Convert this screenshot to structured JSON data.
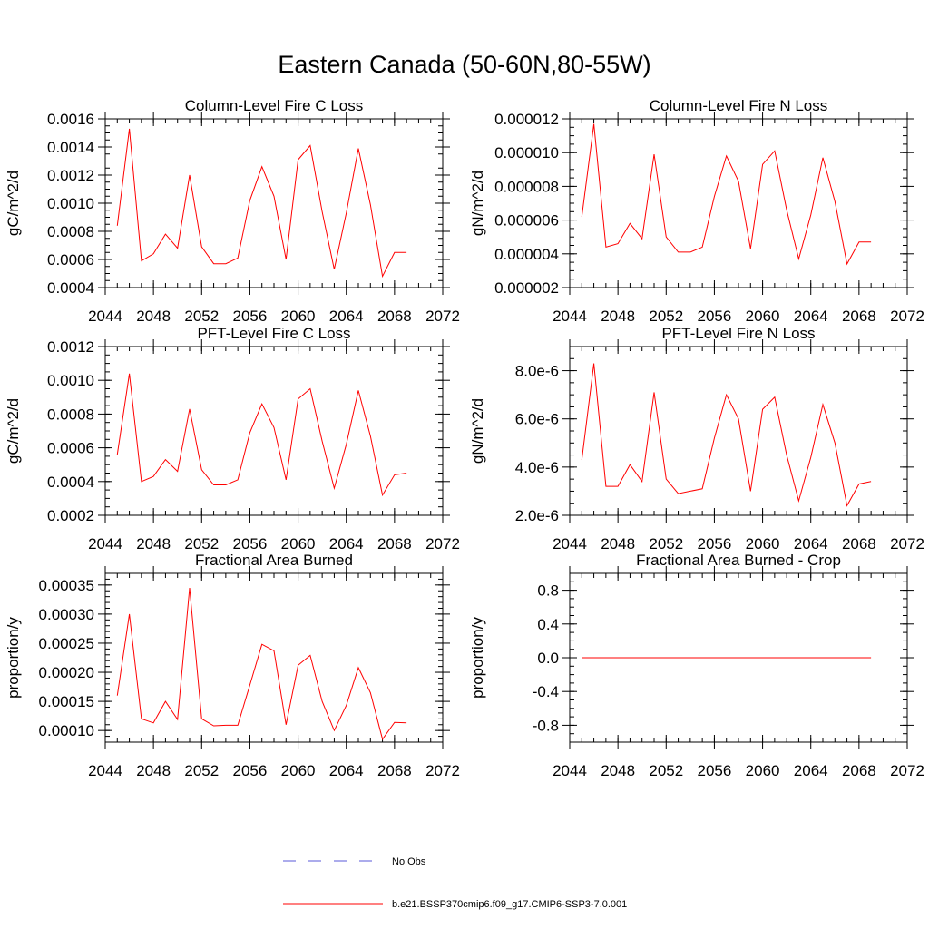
{
  "figure": {
    "title": "Eastern Canada (50-60N,80-55W)"
  },
  "chart_data": [
    {
      "type": "line",
      "title": "Column-Level Fire C Loss",
      "xlabel": "",
      "ylabel": "gC/m^2/d",
      "xlim": [
        2044,
        2072
      ],
      "ylim": [
        0.0004,
        0.0016
      ],
      "xticks": [
        2044,
        2048,
        2052,
        2056,
        2060,
        2064,
        2068,
        2072
      ],
      "xminor_step": 1,
      "yticks": [
        0.0004,
        0.0006,
        0.0008,
        0.001,
        0.0012,
        0.0014,
        0.0016
      ],
      "ytick_labels": [
        "0.0004",
        "0.0006",
        "0.0008",
        "0.0010",
        "0.0012",
        "0.0014",
        "0.0016"
      ],
      "yminor_step": 5e-05,
      "series": [
        {
          "name": "b.e21.BSSP370cmip6.f09_g17.CMIP6-SSP3-7.0.001",
          "color": "#ff0000",
          "x": [
            2045,
            2046,
            2047,
            2048,
            2049,
            2050,
            2051,
            2052,
            2053,
            2054,
            2055,
            2056,
            2057,
            2058,
            2059,
            2060,
            2061,
            2062,
            2063,
            2064,
            2065,
            2066,
            2067,
            2068,
            2069
          ],
          "y": [
            0.00084,
            0.00153,
            0.00059,
            0.00064,
            0.00078,
            0.00068,
            0.0012,
            0.00069,
            0.00057,
            0.00057,
            0.00061,
            0.00102,
            0.00126,
            0.00105,
            0.0006,
            0.00131,
            0.00141,
            0.00094,
            0.00053,
            0.00093,
            0.00139,
            0.00099,
            0.00048,
            0.00065,
            0.00065
          ]
        }
      ]
    },
    {
      "type": "line",
      "title": "Column-Level Fire N Loss",
      "xlabel": "",
      "ylabel": "gN/m^2/d",
      "xlim": [
        2044,
        2072
      ],
      "ylim": [
        2e-06,
        1.2e-05
      ],
      "xticks": [
        2044,
        2048,
        2052,
        2056,
        2060,
        2064,
        2068,
        2072
      ],
      "xminor_step": 1,
      "yticks": [
        2e-06,
        4e-06,
        6e-06,
        8e-06,
        1e-05,
        1.2e-05
      ],
      "ytick_labels": [
        "0.000002",
        "0.000004",
        "0.000006",
        "0.000008",
        "0.000010",
        "0.000012"
      ],
      "yminor_step": 5e-07,
      "series": [
        {
          "name": "b.e21.BSSP370cmip6.f09_g17.CMIP6-SSP3-7.0.001",
          "color": "#ff0000",
          "x": [
            2045,
            2046,
            2047,
            2048,
            2049,
            2050,
            2051,
            2052,
            2053,
            2054,
            2055,
            2056,
            2057,
            2058,
            2059,
            2060,
            2061,
            2062,
            2063,
            2064,
            2065,
            2066,
            2067,
            2068,
            2069
          ],
          "y": [
            6.2e-06,
            1.17e-05,
            4.4e-06,
            4.6e-06,
            5.8e-06,
            4.9e-06,
            9.9e-06,
            5e-06,
            4.1e-06,
            4.1e-06,
            4.4e-06,
            7.4e-06,
            9.8e-06,
            8.3e-06,
            4.3e-06,
            9.3e-06,
            1.01e-05,
            6.6e-06,
            3.7e-06,
            6.3e-06,
            9.7e-06,
            7.1e-06,
            3.4e-06,
            4.7e-06,
            4.7e-06
          ]
        }
      ]
    },
    {
      "type": "line",
      "title": "PFT-Level Fire C Loss",
      "xlabel": "",
      "ylabel": "gC/m^2/d",
      "xlim": [
        2044,
        2072
      ],
      "ylim": [
        0.0002,
        0.0012
      ],
      "xticks": [
        2044,
        2048,
        2052,
        2056,
        2060,
        2064,
        2068,
        2072
      ],
      "xminor_step": 1,
      "yticks": [
        0.0002,
        0.0004,
        0.0006,
        0.0008,
        0.001,
        0.0012
      ],
      "ytick_labels": [
        "0.0002",
        "0.0004",
        "0.0006",
        "0.0008",
        "0.0010",
        "0.0012"
      ],
      "yminor_step": 5e-05,
      "series": [
        {
          "name": "b.e21.BSSP370cmip6.f09_g17.CMIP6-SSP3-7.0.001",
          "color": "#ff0000",
          "x": [
            2045,
            2046,
            2047,
            2048,
            2049,
            2050,
            2051,
            2052,
            2053,
            2054,
            2055,
            2056,
            2057,
            2058,
            2059,
            2060,
            2061,
            2062,
            2063,
            2064,
            2065,
            2066,
            2067,
            2068,
            2069
          ],
          "y": [
            0.00056,
            0.00104,
            0.0004,
            0.00043,
            0.00053,
            0.00046,
            0.00083,
            0.00047,
            0.00038,
            0.00038,
            0.00041,
            0.00069,
            0.00086,
            0.00072,
            0.00041,
            0.00089,
            0.00095,
            0.00064,
            0.00036,
            0.00062,
            0.00094,
            0.00067,
            0.00032,
            0.00044,
            0.00045
          ]
        }
      ]
    },
    {
      "type": "line",
      "title": "PFT-Level Fire N Loss",
      "xlabel": "",
      "ylabel": "gN/m^2/d",
      "xlim": [
        2044,
        2072
      ],
      "ylim": [
        2e-06,
        9e-06
      ],
      "xticks": [
        2044,
        2048,
        2052,
        2056,
        2060,
        2064,
        2068,
        2072
      ],
      "xminor_step": 1,
      "yticks": [
        2e-06,
        4e-06,
        6e-06,
        8e-06
      ],
      "ytick_labels": [
        "2.0e-6",
        "4.0e-6",
        "6.0e-6",
        "8.0e-6"
      ],
      "yminor_step": 5e-07,
      "series": [
        {
          "name": "b.e21.BSSP370cmip6.f09_g17.CMIP6-SSP3-7.0.001",
          "color": "#ff0000",
          "x": [
            2045,
            2046,
            2047,
            2048,
            2049,
            2050,
            2051,
            2052,
            2053,
            2054,
            2055,
            2056,
            2057,
            2058,
            2059,
            2060,
            2061,
            2062,
            2063,
            2064,
            2065,
            2066,
            2067,
            2068,
            2069
          ],
          "y": [
            4.3e-06,
            8.3e-06,
            3.2e-06,
            3.2e-06,
            4.1e-06,
            3.4e-06,
            7.1e-06,
            3.5e-06,
            2.9e-06,
            3e-06,
            3.1e-06,
            5.2e-06,
            7e-06,
            6e-06,
            3e-06,
            6.4e-06,
            6.9e-06,
            4.5e-06,
            2.6e-06,
            4.4e-06,
            6.6e-06,
            5e-06,
            2.4e-06,
            3.3e-06,
            3.4e-06
          ]
        }
      ]
    },
    {
      "type": "line",
      "title": "Fractional Area Burned",
      "xlabel": "",
      "ylabel": "proportion/y",
      "xlim": [
        2044,
        2072
      ],
      "ylim": [
        8e-05,
        0.00037
      ],
      "xticks": [
        2044,
        2048,
        2052,
        2056,
        2060,
        2064,
        2068,
        2072
      ],
      "xminor_step": 1,
      "yticks": [
        0.0001,
        0.00015,
        0.0002,
        0.00025,
        0.0003,
        0.00035
      ],
      "ytick_labels": [
        "0.00010",
        "0.00015",
        "0.00020",
        "0.00025",
        "0.00030",
        "0.00035"
      ],
      "yminor_step": 1e-05,
      "series": [
        {
          "name": "b.e21.BSSP370cmip6.f09_g17.CMIP6-SSP3-7.0.001",
          "color": "#ff0000",
          "x": [
            2045,
            2046,
            2047,
            2048,
            2049,
            2050,
            2051,
            2052,
            2053,
            2054,
            2055,
            2056,
            2057,
            2058,
            2059,
            2060,
            2061,
            2062,
            2063,
            2064,
            2065,
            2066,
            2067,
            2068,
            2069
          ],
          "y": [
            0.00016,
            0.0003,
            0.00012,
            0.000113,
            0.00015,
            0.000119,
            0.000345,
            0.00012,
            0.000108,
            0.000109,
            0.000109,
            0.000178,
            0.000248,
            0.000237,
            0.00011,
            0.000212,
            0.000229,
            0.00015,
            0.0001,
            0.000143,
            0.000208,
            0.000165,
            8.5e-05,
            0.000114,
            0.000113
          ]
        }
      ]
    },
    {
      "type": "line",
      "title": "Fractional Area Burned - Crop",
      "xlabel": "",
      "ylabel": "proportion/y",
      "xlim": [
        2044,
        2072
      ],
      "ylim": [
        -1.0,
        1.0
      ],
      "xticks": [
        2044,
        2048,
        2052,
        2056,
        2060,
        2064,
        2068,
        2072
      ],
      "xminor_step": 1,
      "yticks": [
        -0.8,
        -0.4,
        0.0,
        0.4,
        0.8
      ],
      "ytick_labels": [
        "-0.8",
        "-0.4",
        "0.0",
        "0.4",
        "0.8"
      ],
      "yminor_step": 0.1,
      "series": [
        {
          "name": "b.e21.BSSP370cmip6.f09_g17.CMIP6-SSP3-7.0.001",
          "color": "#ff0000",
          "x": [
            2045,
            2046,
            2047,
            2048,
            2049,
            2050,
            2051,
            2052,
            2053,
            2054,
            2055,
            2056,
            2057,
            2058,
            2059,
            2060,
            2061,
            2062,
            2063,
            2064,
            2065,
            2066,
            2067,
            2068,
            2069
          ],
          "y": [
            0,
            0,
            0,
            0,
            0,
            0,
            0,
            0,
            0,
            0,
            0,
            0,
            0,
            0,
            0,
            0,
            0,
            0,
            0,
            0,
            0,
            0,
            0,
            0,
            0
          ]
        }
      ]
    }
  ],
  "legend": {
    "placement": "bottom-center",
    "entries": [
      {
        "label": "No Obs",
        "color": "#5a5ad8",
        "style": "dashed"
      },
      {
        "label": "b.e21.BSSP370cmip6.f09_g17.CMIP6-SSP3-7.0.001",
        "color": "#ff0000",
        "style": "solid"
      }
    ]
  }
}
